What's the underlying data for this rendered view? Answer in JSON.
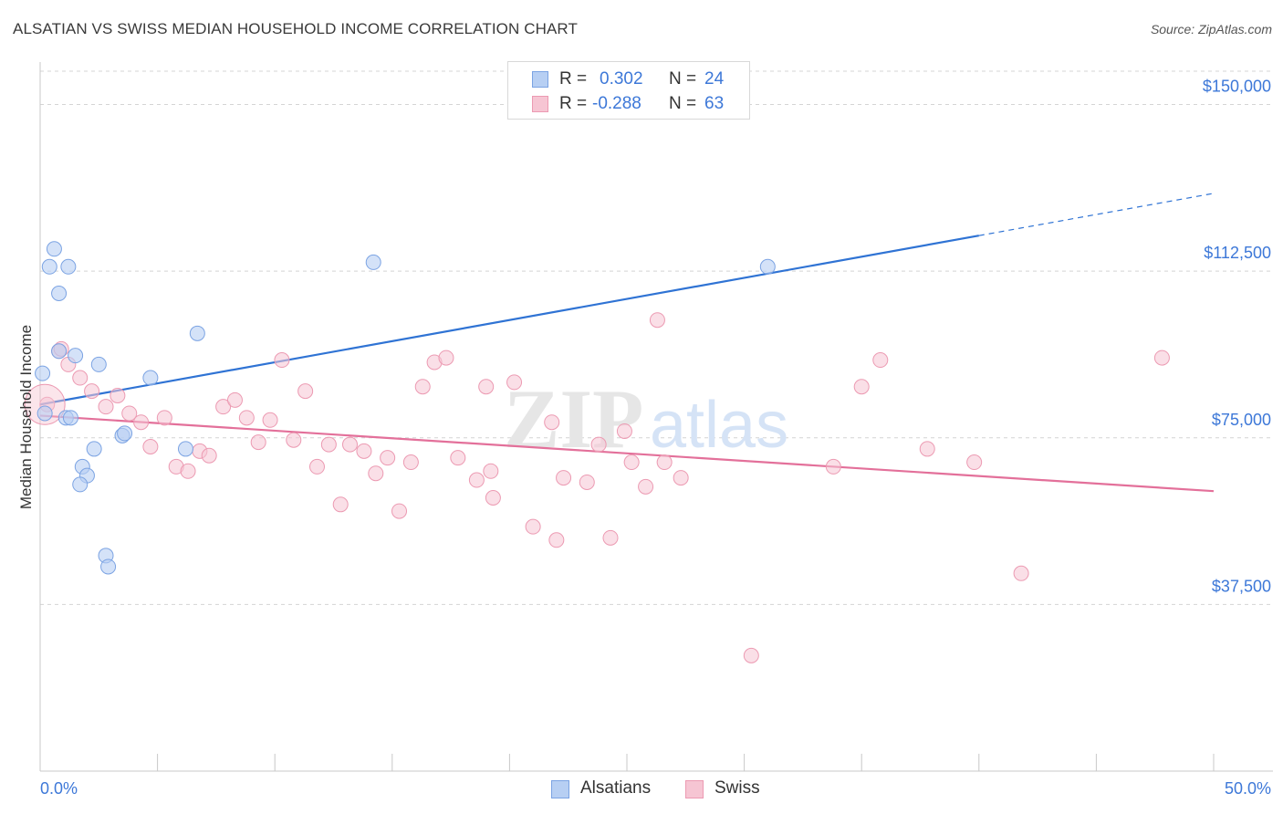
{
  "title": "ALSATIAN VS SWISS MEDIAN HOUSEHOLD INCOME CORRELATION CHART",
  "source": "Source: ZipAtlas.com",
  "watermark": {
    "zip": "ZIP",
    "atlas": "atlas"
  },
  "legend": {
    "rows": [
      {
        "r_label": "R =",
        "r_value": "0.302",
        "n_label": "N =",
        "n_value": "24"
      },
      {
        "r_label": "R =",
        "r_value": "-0.288",
        "n_label": "N =",
        "n_value": "63"
      }
    ]
  },
  "bottom_legend": [
    "Alsatians",
    "Swiss"
  ],
  "colors": {
    "alsatian_fill": "#b7cff3",
    "alsatian_stroke": "#7ba3e3",
    "alsatian_line": "#2f73d4",
    "swiss_fill": "#f6c5d3",
    "swiss_stroke": "#ec9ab2",
    "swiss_line": "#e3709a",
    "tick_label": "#3d78d8",
    "grid": "#d4d4d4"
  },
  "chart_data": {
    "type": "scatter",
    "title": "ALSATIAN VS SWISS MEDIAN HOUSEHOLD INCOME CORRELATION CHART",
    "xlabel": "",
    "ylabel": "Median Household Income",
    "xlim": [
      0,
      50
    ],
    "ylim": [
      0,
      157500
    ],
    "x_tick_labels": [
      "0.0%",
      "50.0%"
    ],
    "y_ticks": [
      37500,
      75000,
      112500,
      150000
    ],
    "y_tick_labels": [
      "$37,500",
      "$75,000",
      "$112,500",
      "$150,000"
    ],
    "series": [
      {
        "name": "Alsatians",
        "r": 0.302,
        "n": 24,
        "points": [
          [
            0.2,
            80500
          ],
          [
            0.1,
            89500
          ],
          [
            0.6,
            117500
          ],
          [
            0.4,
            113500
          ],
          [
            1.2,
            113500
          ],
          [
            0.8,
            107500
          ],
          [
            0.8,
            94500
          ],
          [
            1.5,
            93500
          ],
          [
            2.5,
            91500
          ],
          [
            1.1,
            79500
          ],
          [
            1.3,
            79500
          ],
          [
            2.3,
            72500
          ],
          [
            1.8,
            68500
          ],
          [
            2.0,
            66500
          ],
          [
            1.7,
            64500
          ],
          [
            3.5,
            75500
          ],
          [
            3.6,
            76000
          ],
          [
            4.7,
            88500
          ],
          [
            6.7,
            98500
          ],
          [
            6.2,
            72500
          ],
          [
            2.8,
            48500
          ],
          [
            2.9,
            46000
          ],
          [
            14.2,
            114500
          ],
          [
            31.0,
            113500
          ]
        ],
        "trend": {
          "x0": 0,
          "y0": 82500,
          "x1": 40,
          "y1": 120500,
          "dashed_to_x": 50,
          "dashed_to_y": 130000
        }
      },
      {
        "name": "Swiss",
        "r": -0.288,
        "n": 63,
        "points": [
          [
            0.3,
            82500
          ],
          [
            0.8,
            94500
          ],
          [
            1.2,
            91500
          ],
          [
            1.7,
            88500
          ],
          [
            2.2,
            85500
          ],
          [
            2.8,
            82000
          ],
          [
            3.3,
            84500
          ],
          [
            3.8,
            80500
          ],
          [
            4.3,
            78500
          ],
          [
            4.7,
            73000
          ],
          [
            5.3,
            79500
          ],
          [
            5.8,
            68500
          ],
          [
            6.3,
            67500
          ],
          [
            6.8,
            72000
          ],
          [
            7.2,
            71000
          ],
          [
            7.8,
            82000
          ],
          [
            8.3,
            83500
          ],
          [
            8.8,
            79500
          ],
          [
            9.3,
            74000
          ],
          [
            9.8,
            79000
          ],
          [
            10.3,
            92500
          ],
          [
            10.8,
            74500
          ],
          [
            11.3,
            85500
          ],
          [
            11.8,
            68500
          ],
          [
            12.3,
            73500
          ],
          [
            12.8,
            60000
          ],
          [
            13.2,
            73500
          ],
          [
            13.8,
            72000
          ],
          [
            14.3,
            67000
          ],
          [
            14.8,
            70500
          ],
          [
            15.3,
            58500
          ],
          [
            15.8,
            69500
          ],
          [
            16.3,
            86500
          ],
          [
            16.8,
            92000
          ],
          [
            17.3,
            93000
          ],
          [
            17.8,
            70500
          ],
          [
            18.6,
            65500
          ],
          [
            19.2,
            67500
          ],
          [
            19.3,
            61500
          ],
          [
            19.0,
            86500
          ],
          [
            20.2,
            87500
          ],
          [
            21.0,
            55000
          ],
          [
            21.8,
            78500
          ],
          [
            22.0,
            52000
          ],
          [
            22.3,
            66000
          ],
          [
            23.3,
            65000
          ],
          [
            23.8,
            73500
          ],
          [
            24.3,
            52500
          ],
          [
            24.9,
            76500
          ],
          [
            25.2,
            69500
          ],
          [
            25.8,
            64000
          ],
          [
            26.3,
            101500
          ],
          [
            26.6,
            69500
          ],
          [
            27.3,
            66000
          ],
          [
            30.3,
            26000
          ],
          [
            33.8,
            68500
          ],
          [
            35.0,
            86500
          ],
          [
            35.8,
            92500
          ],
          [
            37.8,
            72500
          ],
          [
            39.8,
            69500
          ],
          [
            41.8,
            44500
          ],
          [
            47.8,
            93000
          ],
          [
            0.9,
            95000
          ]
        ],
        "trend": {
          "x0": 0,
          "y0": 80000,
          "x1": 50,
          "y1": 63000
        }
      }
    ]
  }
}
